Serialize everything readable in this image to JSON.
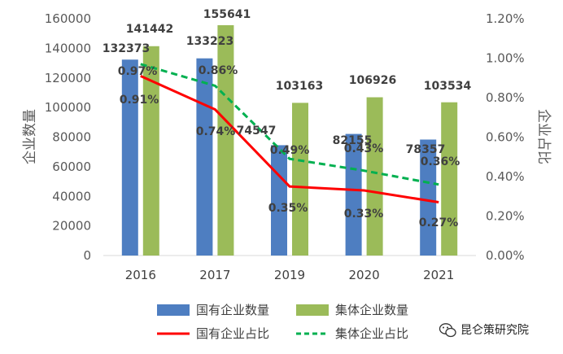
{
  "chart_data": {
    "type": "bar",
    "categories": [
      "2016",
      "2017",
      "2019",
      "2020",
      "2021"
    ],
    "series": [
      {
        "name": "国有企业数量",
        "kind": "bar",
        "axis": "left",
        "color": "#4e7ec1",
        "values": [
          132373,
          133223,
          74547,
          82155,
          78357
        ],
        "labels": [
          "132373",
          "133223",
          "74547",
          "82155",
          "78357"
        ]
      },
      {
        "name": "集体企业数量",
        "kind": "bar",
        "axis": "left",
        "color": "#9bbb59",
        "values": [
          141442,
          155641,
          103163,
          106926,
          103534
        ],
        "labels": [
          "141442",
          "155641",
          "103163",
          "106926",
          "103534"
        ]
      },
      {
        "name": "国有企业占比",
        "kind": "line",
        "axis": "right",
        "color": "#ff0000",
        "style": "solid",
        "values": [
          0.91,
          0.74,
          0.35,
          0.33,
          0.27
        ],
        "labels": [
          "0.91%",
          "0.74%",
          "0.35%",
          "0.33%",
          "0.27%"
        ]
      },
      {
        "name": "集体企业占比",
        "kind": "line",
        "axis": "right",
        "color": "#00b050",
        "style": "dashed",
        "values": [
          0.97,
          0.86,
          0.49,
          0.43,
          0.36
        ],
        "labels": [
          "0.97%",
          "0.86%",
          "0.49%",
          "0.43%",
          "0.36%"
        ]
      }
    ],
    "ylabel": "企业数量",
    "y2label": "企业占比",
    "ylim": [
      0,
      160000
    ],
    "yticks": [
      "0",
      "20000",
      "40000",
      "60000",
      "80000",
      "100000",
      "120000",
      "140000",
      "160000"
    ],
    "y2lim": [
      0,
      1.2
    ],
    "y2ticks": [
      "0.00%",
      "0.20%",
      "0.40%",
      "0.60%",
      "0.80%",
      "1.00%",
      "1.20%"
    ],
    "grid": false,
    "legend_position": "bottom"
  },
  "watermark": {
    "text": "昆仑策研究院",
    "icon": "wechat-icon"
  }
}
